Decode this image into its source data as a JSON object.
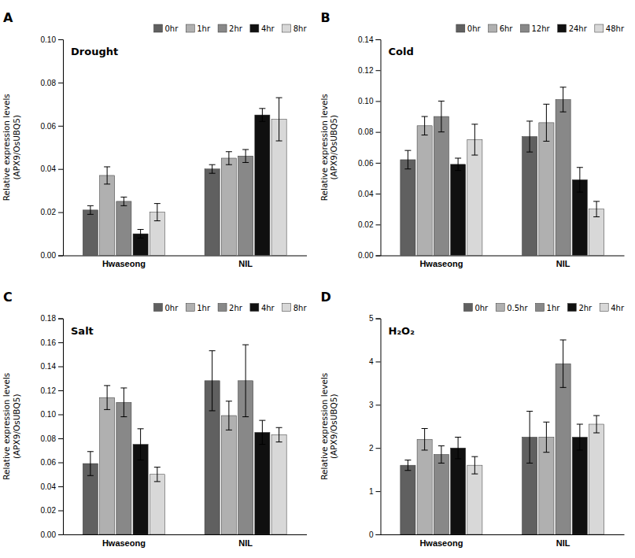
{
  "chart_data": [
    {
      "type": "bar",
      "title": "Drought",
      "annotations": [
        "A"
      ],
      "ylabel": "Relative expression levels\n(APX9/OsUBQ5)",
      "categories": [
        "Hwaseong",
        "NIL"
      ],
      "series": [
        {
          "name": "0hr",
          "color": "#606060",
          "values": [
            0.021,
            0.04
          ],
          "errors": [
            0.002,
            0.002
          ]
        },
        {
          "name": "1hr",
          "color": "#b0b0b0",
          "values": [
            0.037,
            0.045
          ],
          "errors": [
            0.004,
            0.003
          ]
        },
        {
          "name": "2hr",
          "color": "#888888",
          "values": [
            0.025,
            0.046
          ],
          "errors": [
            0.002,
            0.003
          ]
        },
        {
          "name": "4hr",
          "color": "#101010",
          "values": [
            0.01,
            0.065
          ],
          "errors": [
            0.002,
            0.003
          ]
        },
        {
          "name": "8hr",
          "color": "#d8d8d8",
          "values": [
            0.02,
            0.063
          ],
          "errors": [
            0.004,
            0.01
          ]
        }
      ],
      "ylim": [
        0,
        0.1
      ],
      "yticks": [
        {
          "value": 0,
          "label": "0.00"
        },
        0.02,
        0.04,
        0.06,
        0.08,
        {
          "value": 0.1,
          "label": "0.10"
        }
      ],
      "grid": false,
      "legend": "top"
    },
    {
      "type": "bar",
      "title": "Cold",
      "annotations": [
        "B"
      ],
      "ylabel": "Relative expression levels\n(APX9/OsUBQ5)",
      "categories": [
        "Hwaseong",
        "NIL"
      ],
      "series": [
        {
          "name": "0hr",
          "color": "#606060",
          "values": [
            0.062,
            0.077
          ],
          "errors": [
            0.006,
            0.01
          ]
        },
        {
          "name": "6hr",
          "color": "#b0b0b0",
          "values": [
            0.084,
            0.086
          ],
          "errors": [
            0.006,
            0.012
          ]
        },
        {
          "name": "12hr",
          "color": "#888888",
          "values": [
            0.09,
            0.101
          ],
          "errors": [
            0.01,
            0.008
          ]
        },
        {
          "name": "24hr",
          "color": "#101010",
          "values": [
            0.059,
            0.049
          ],
          "errors": [
            0.004,
            0.008
          ]
        },
        {
          "name": "48hr",
          "color": "#d8d8d8",
          "values": [
            0.075,
            0.03
          ],
          "errors": [
            0.01,
            0.005
          ]
        }
      ],
      "ylim": [
        0,
        0.14
      ],
      "yticks": [
        {
          "value": 0,
          "label": "0.00"
        },
        0.02,
        0.04,
        0.06,
        0.08,
        {
          "value": 0.1,
          "label": "0.10"
        },
        0.12,
        0.14
      ],
      "grid": false,
      "legend": "top"
    },
    {
      "type": "bar",
      "title": "Salt",
      "annotations": [
        "C"
      ],
      "ylabel": "Relative expression levels\n(APX9/OsUBQ5)",
      "categories": [
        "Hwaseong",
        "NIL"
      ],
      "series": [
        {
          "name": "0hr",
          "color": "#606060",
          "values": [
            0.059,
            0.128
          ],
          "errors": [
            0.01,
            0.025
          ]
        },
        {
          "name": "1hr",
          "color": "#b0b0b0",
          "values": [
            0.114,
            0.099
          ],
          "errors": [
            0.01,
            0.012
          ]
        },
        {
          "name": "2hr",
          "color": "#888888",
          "values": [
            0.11,
            0.128
          ],
          "errors": [
            0.012,
            0.03
          ]
        },
        {
          "name": "4hr",
          "color": "#101010",
          "values": [
            0.075,
            0.085
          ],
          "errors": [
            0.013,
            0.01
          ]
        },
        {
          "name": "8hr",
          "color": "#d8d8d8",
          "values": [
            0.05,
            0.083
          ],
          "errors": [
            0.006,
            0.006
          ]
        }
      ],
      "ylim": [
        0,
        0.18
      ],
      "yticks": [
        {
          "value": 0,
          "label": "0.00"
        },
        0.02,
        0.04,
        0.06,
        0.08,
        {
          "value": 0.1,
          "label": "0.10"
        },
        0.12,
        0.14,
        0.16,
        0.18
      ],
      "grid": false,
      "legend": "top"
    },
    {
      "type": "bar",
      "title": "H₂O₂",
      "annotations": [
        "D"
      ],
      "ylabel": "Relative expression levels\n(APX9/OsUBQ5)",
      "categories": [
        "Hwaseong",
        "NIL"
      ],
      "series": [
        {
          "name": "0hr",
          "color": "#606060",
          "values": [
            1.6,
            2.25
          ],
          "errors": [
            0.12,
            0.6
          ]
        },
        {
          "name": "0.5hr",
          "color": "#b0b0b0",
          "values": [
            2.2,
            2.25
          ],
          "errors": [
            0.25,
            0.35
          ]
        },
        {
          "name": "1hr",
          "color": "#888888",
          "values": [
            1.85,
            3.95
          ],
          "errors": [
            0.2,
            0.55
          ]
        },
        {
          "name": "2hr",
          "color": "#101010",
          "values": [
            2.0,
            2.25
          ],
          "errors": [
            0.25,
            0.3
          ]
        },
        {
          "name": "4hr",
          "color": "#d8d8d8",
          "values": [
            1.6,
            2.55
          ],
          "errors": [
            0.2,
            0.2
          ]
        }
      ],
      "ylim": [
        0,
        5
      ],
      "yticks": [
        0,
        1,
        2,
        3,
        4,
        5
      ],
      "grid": false,
      "legend": "top"
    }
  ]
}
